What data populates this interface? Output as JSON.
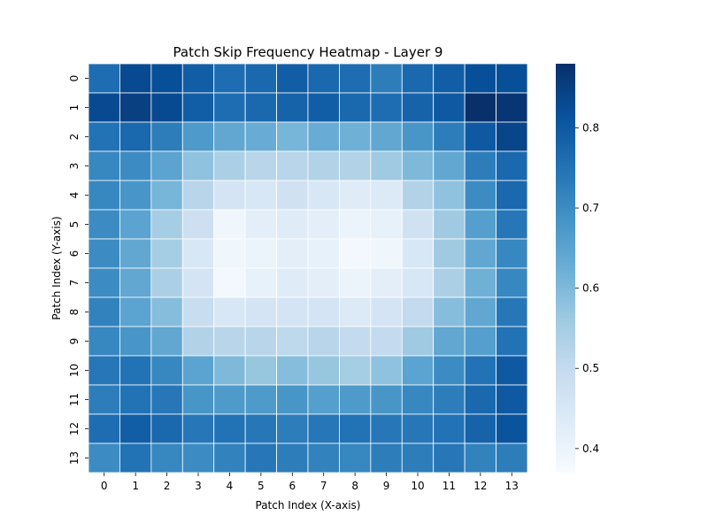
{
  "chart_data": {
    "type": "heatmap",
    "title": "Patch Skip Frequency Heatmap - Layer 9",
    "xlabel": "Patch Index (X-axis)",
    "ylabel": "Patch Index (Y-axis)",
    "x": [
      "0",
      "1",
      "2",
      "3",
      "4",
      "5",
      "6",
      "7",
      "8",
      "9",
      "10",
      "11",
      "12",
      "13"
    ],
    "y": [
      "0",
      "1",
      "2",
      "3",
      "4",
      "5",
      "6",
      "7",
      "8",
      "9",
      "10",
      "11",
      "12",
      "13"
    ],
    "colormap": "Blues",
    "vmin": 0.37,
    "vmax": 0.88,
    "colorbar_ticks": [
      "0.4",
      "0.5",
      "0.6",
      "0.7",
      "0.8"
    ],
    "colorbar_tick_values": [
      0.4,
      0.5,
      0.6,
      0.7,
      0.8
    ],
    "values": [
      [
        0.76,
        0.83,
        0.82,
        0.79,
        0.76,
        0.77,
        0.79,
        0.77,
        0.76,
        0.73,
        0.77,
        0.79,
        0.82,
        0.82
      ],
      [
        0.83,
        0.85,
        0.83,
        0.79,
        0.76,
        0.77,
        0.78,
        0.79,
        0.77,
        0.76,
        0.78,
        0.8,
        0.88,
        0.87
      ],
      [
        0.75,
        0.77,
        0.73,
        0.67,
        0.64,
        0.63,
        0.61,
        0.63,
        0.62,
        0.64,
        0.68,
        0.73,
        0.8,
        0.84
      ],
      [
        0.71,
        0.7,
        0.65,
        0.58,
        0.54,
        0.52,
        0.52,
        0.53,
        0.53,
        0.56,
        0.6,
        0.64,
        0.73,
        0.77
      ],
      [
        0.71,
        0.68,
        0.61,
        0.52,
        0.46,
        0.45,
        0.47,
        0.45,
        0.43,
        0.44,
        0.53,
        0.58,
        0.7,
        0.77
      ],
      [
        0.7,
        0.65,
        0.55,
        0.48,
        0.39,
        0.42,
        0.43,
        0.42,
        0.4,
        0.41,
        0.47,
        0.56,
        0.66,
        0.74
      ],
      [
        0.7,
        0.64,
        0.55,
        0.45,
        0.39,
        0.4,
        0.42,
        0.41,
        0.38,
        0.39,
        0.45,
        0.56,
        0.64,
        0.71
      ],
      [
        0.7,
        0.64,
        0.54,
        0.46,
        0.38,
        0.41,
        0.43,
        0.42,
        0.4,
        0.42,
        0.45,
        0.54,
        0.62,
        0.71
      ],
      [
        0.72,
        0.65,
        0.59,
        0.49,
        0.45,
        0.46,
        0.46,
        0.46,
        0.44,
        0.46,
        0.5,
        0.59,
        0.64,
        0.74
      ],
      [
        0.71,
        0.68,
        0.64,
        0.53,
        0.52,
        0.52,
        0.51,
        0.52,
        0.5,
        0.5,
        0.56,
        0.64,
        0.66,
        0.75
      ],
      [
        0.74,
        0.75,
        0.71,
        0.65,
        0.6,
        0.57,
        0.59,
        0.57,
        0.55,
        0.58,
        0.65,
        0.7,
        0.75,
        0.8
      ],
      [
        0.73,
        0.75,
        0.74,
        0.68,
        0.67,
        0.67,
        0.68,
        0.66,
        0.67,
        0.68,
        0.71,
        0.73,
        0.77,
        0.8
      ],
      [
        0.76,
        0.79,
        0.77,
        0.74,
        0.75,
        0.74,
        0.73,
        0.74,
        0.75,
        0.74,
        0.74,
        0.75,
        0.78,
        0.81
      ],
      [
        0.7,
        0.75,
        0.71,
        0.7,
        0.72,
        0.74,
        0.73,
        0.72,
        0.71,
        0.73,
        0.73,
        0.74,
        0.72,
        0.73
      ]
    ]
  }
}
